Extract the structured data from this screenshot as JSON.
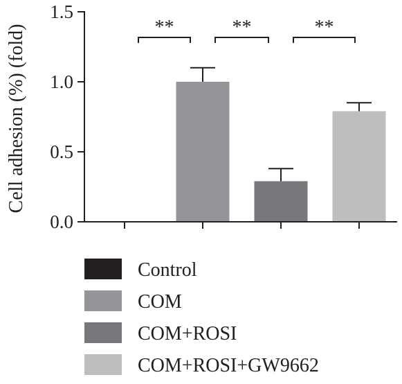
{
  "chart_data": {
    "type": "bar",
    "title": "",
    "xlabel": "",
    "ylabel": "Cell adhesion (%) (fold)",
    "ylim": [
      0,
      1.5
    ],
    "yticks": [
      0.0,
      0.5,
      1.0,
      1.5
    ],
    "ytick_labels": [
      "0.0",
      "0.5",
      "1.0",
      "1.5"
    ],
    "grid": false,
    "legend_position": "bottom",
    "categories": [
      "Control",
      "COM",
      "COM+ROSI",
      "COM+ROSI+GW9662"
    ],
    "values": [
      0.0,
      1.0,
      0.29,
      0.79
    ],
    "errors": [
      0.0,
      0.1,
      0.09,
      0.06
    ],
    "colors": [
      "#231f20",
      "#939598",
      "#77787b",
      "#bcbec0"
    ],
    "significance": [
      {
        "from": 0,
        "to": 1,
        "label": "**"
      },
      {
        "from": 1,
        "to": 2,
        "label": "**"
      },
      {
        "from": 2,
        "to": 3,
        "label": "**"
      }
    ]
  }
}
